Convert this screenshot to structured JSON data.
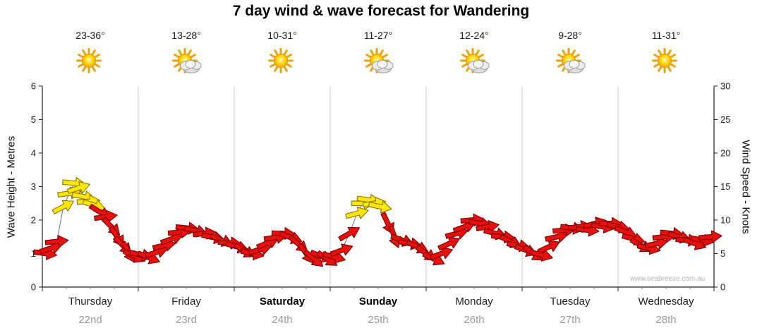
{
  "title": "7 day wind & wave forecast for Wandering",
  "watermark": "www.seabreeze.com.au",
  "axes": {
    "left_label": "Wave Height - Metres",
    "right_label": "Wind Speed - Knots",
    "left_ticks": [
      0,
      1,
      2,
      3,
      4,
      5,
      6
    ],
    "right_ticks": [
      0,
      5,
      10,
      15,
      20,
      25,
      30
    ]
  },
  "days": [
    {
      "name": "Thursday",
      "date": "22nd",
      "temp": "23-36°",
      "icon": "sun",
      "weekend": false
    },
    {
      "name": "Friday",
      "date": "23rd",
      "temp": "13-28°",
      "icon": "sun-cloud",
      "weekend": false
    },
    {
      "name": "Saturday",
      "date": "24th",
      "temp": "10-31°",
      "icon": "sun",
      "weekend": true
    },
    {
      "name": "Sunday",
      "date": "25th",
      "temp": "11-27°",
      "icon": "sun-cloud",
      "weekend": true
    },
    {
      "name": "Monday",
      "date": "26th",
      "temp": "12-24°",
      "icon": "sun-cloud",
      "weekend": false
    },
    {
      "name": "Tuesday",
      "date": "27th",
      "temp": "9-28°",
      "icon": "sun-cloud",
      "weekend": false
    },
    {
      "name": "Wednesday",
      "date": "28th",
      "temp": "11-31°",
      "icon": "sun",
      "weekend": false
    }
  ],
  "chart_data": {
    "type": "scatter",
    "title": "7 day wind & wave forecast for Wandering",
    "categories": [
      "Thursday 22nd",
      "Friday 23rd",
      "Saturday 24th",
      "Sunday 25th",
      "Monday 26th",
      "Tuesday 27th",
      "Wednesday 28th"
    ],
    "x_range_days": [
      0,
      7
    ],
    "y_left": {
      "label": "Wave Height - Metres",
      "range": [
        0,
        6
      ],
      "ticks": [
        0,
        1,
        2,
        3,
        4,
        5,
        6
      ]
    },
    "y_right": {
      "label": "Wind Speed - Knots",
      "range": [
        0,
        30
      ],
      "ticks": [
        0,
        5,
        10,
        15,
        20,
        25,
        30
      ]
    },
    "series_note": "Each point is a wind arrow: day_x = days after Thursday 00:00, knots = wind speed on right axis, dir_deg = arrow rotation (0 points right, positive rotates downward), color r = red (lighter wind) / y = yellow (stronger wind)",
    "arrow_fields": [
      "day_x",
      "knots",
      "dir_deg",
      "color"
    ],
    "arrows": [
      [
        0.03,
        5.0,
        8,
        "r"
      ],
      [
        0.09,
        5.8,
        -18,
        "r"
      ],
      [
        0.15,
        6.8,
        -6,
        "r"
      ],
      [
        0.22,
        12.0,
        -28,
        "y"
      ],
      [
        0.28,
        14.0,
        -8,
        "y"
      ],
      [
        0.33,
        15.5,
        6,
        "y"
      ],
      [
        0.38,
        14.8,
        -18,
        "y"
      ],
      [
        0.43,
        13.5,
        10,
        "y"
      ],
      [
        0.48,
        12.8,
        -4,
        "y"
      ],
      [
        0.54,
        12.2,
        18,
        "y"
      ],
      [
        0.6,
        11.2,
        32,
        "r"
      ],
      [
        0.66,
        10.5,
        -8,
        "r"
      ],
      [
        0.72,
        9.0,
        45,
        "r"
      ],
      [
        0.78,
        7.5,
        55,
        "r"
      ],
      [
        0.84,
        6.2,
        45,
        "r"
      ],
      [
        0.9,
        5.2,
        60,
        "r"
      ],
      [
        0.96,
        4.6,
        25,
        "r"
      ],
      [
        1.03,
        4.8,
        12,
        "r"
      ],
      [
        1.11,
        4.4,
        22,
        "r"
      ],
      [
        1.19,
        5.2,
        -18,
        "r"
      ],
      [
        1.27,
        6.2,
        -12,
        "r"
      ],
      [
        1.35,
        7.2,
        -20,
        "r"
      ],
      [
        1.43,
        8.2,
        -6,
        "r"
      ],
      [
        1.51,
        8.8,
        6,
        "r"
      ],
      [
        1.6,
        8.4,
        14,
        "r"
      ],
      [
        1.69,
        8.0,
        -6,
        "r"
      ],
      [
        1.78,
        7.4,
        12,
        "r"
      ],
      [
        1.87,
        7.0,
        22,
        "r"
      ],
      [
        1.95,
        6.6,
        4,
        "r"
      ],
      [
        2.03,
        6.0,
        16,
        "r"
      ],
      [
        2.11,
        5.4,
        30,
        "r"
      ],
      [
        2.19,
        5.0,
        12,
        "r"
      ],
      [
        2.27,
        5.6,
        -16,
        "r"
      ],
      [
        2.35,
        6.6,
        -22,
        "r"
      ],
      [
        2.43,
        7.4,
        -8,
        "r"
      ],
      [
        2.51,
        8.0,
        2,
        "r"
      ],
      [
        2.59,
        7.4,
        20,
        "r"
      ],
      [
        2.67,
        6.4,
        40,
        "r"
      ],
      [
        2.75,
        5.0,
        55,
        "r"
      ],
      [
        2.83,
        4.2,
        40,
        "r"
      ],
      [
        2.91,
        4.6,
        20,
        "r"
      ],
      [
        2.97,
        4.2,
        34,
        "r"
      ],
      [
        3.04,
        4.5,
        15,
        "r"
      ],
      [
        3.12,
        5.5,
        -20,
        "r"
      ],
      [
        3.2,
        8.0,
        -30,
        "r"
      ],
      [
        3.28,
        11.0,
        -15,
        "y"
      ],
      [
        3.34,
        12.5,
        0,
        "y"
      ],
      [
        3.4,
        13.0,
        8,
        "y"
      ],
      [
        3.46,
        12.5,
        -8,
        "y"
      ],
      [
        3.52,
        12.0,
        12,
        "y"
      ],
      [
        3.6,
        9.5,
        65,
        "r"
      ],
      [
        3.67,
        7.5,
        70,
        "r"
      ],
      [
        3.75,
        7.0,
        20,
        "r"
      ],
      [
        3.83,
        6.5,
        10,
        "r"
      ],
      [
        3.91,
        6.0,
        25,
        "r"
      ],
      [
        4.0,
        5.0,
        35,
        "r"
      ],
      [
        4.08,
        4.2,
        25,
        "r"
      ],
      [
        4.16,
        5.0,
        -20,
        "r"
      ],
      [
        4.24,
        6.5,
        -25,
        "r"
      ],
      [
        4.32,
        8.0,
        -15,
        "r"
      ],
      [
        4.4,
        9.0,
        -20,
        "r"
      ],
      [
        4.48,
        10.0,
        -5,
        "r"
      ],
      [
        4.56,
        9.5,
        10,
        "r"
      ],
      [
        4.64,
        9.0,
        -10,
        "r"
      ],
      [
        4.72,
        8.0,
        15,
        "r"
      ],
      [
        4.8,
        7.5,
        5,
        "r"
      ],
      [
        4.88,
        6.8,
        25,
        "r"
      ],
      [
        4.96,
        6.2,
        10,
        "r"
      ],
      [
        5.04,
        5.5,
        20,
        "r"
      ],
      [
        5.12,
        5.0,
        35,
        "r"
      ],
      [
        5.2,
        4.8,
        15,
        "r"
      ],
      [
        5.28,
        6.0,
        -25,
        "r"
      ],
      [
        5.36,
        7.5,
        -12,
        "r"
      ],
      [
        5.44,
        8.5,
        -5,
        "r"
      ],
      [
        5.52,
        8.8,
        8,
        "r"
      ],
      [
        5.6,
        9.0,
        -6,
        "r"
      ],
      [
        5.68,
        8.5,
        6,
        "r"
      ],
      [
        5.76,
        9.5,
        -15,
        "r"
      ],
      [
        5.84,
        9.0,
        10,
        "r"
      ],
      [
        5.92,
        9.5,
        0,
        "r"
      ],
      [
        6.0,
        9.0,
        12,
        "r"
      ],
      [
        6.08,
        8.2,
        22,
        "r"
      ],
      [
        6.16,
        7.2,
        15,
        "r"
      ],
      [
        6.24,
        6.2,
        30,
        "r"
      ],
      [
        6.32,
        5.8,
        12,
        "r"
      ],
      [
        6.4,
        6.5,
        -12,
        "r"
      ],
      [
        6.48,
        7.5,
        -6,
        "r"
      ],
      [
        6.56,
        8.0,
        6,
        "r"
      ],
      [
        6.64,
        7.5,
        16,
        "r"
      ],
      [
        6.72,
        7.0,
        4,
        "r"
      ],
      [
        6.8,
        6.5,
        20,
        "r"
      ],
      [
        6.88,
        7.0,
        10,
        "r"
      ],
      [
        6.96,
        7.5,
        -5,
        "r"
      ]
    ],
    "colors": {
      "arrow_red": "#E8100C",
      "arrow_red_stroke": "#7A0000",
      "arrow_yellow": "#FFE800",
      "arrow_yellow_stroke": "#8A7500",
      "connector_line": "#555555",
      "grid": "#CCCCCC",
      "axis": "#222222"
    },
    "grid": "vertical day separators only",
    "legend": "none"
  }
}
